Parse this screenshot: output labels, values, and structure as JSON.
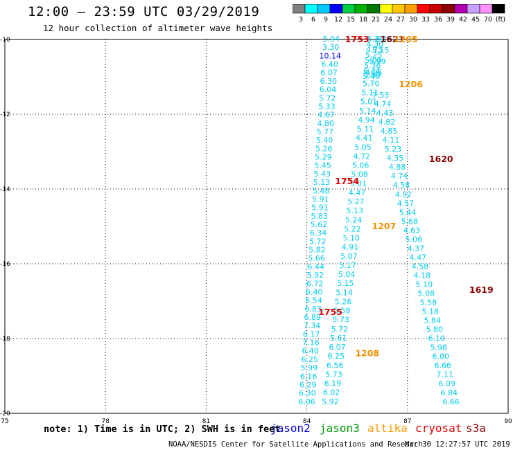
{
  "header": {
    "title": "12:00  – 23:59 UTC 03/29/2019",
    "subtitle": "12 hour collection of altimeter wave heights"
  },
  "colorbar": {
    "labels": [
      "3",
      "6",
      "9",
      "12",
      "15",
      "18",
      "21",
      "24",
      "27",
      "30",
      "33",
      "36",
      "39",
      "42",
      "45",
      "70",
      "(ft)"
    ],
    "colors": [
      "#808080",
      "#00ffff",
      "#00c8ff",
      "#0000ff",
      "#00d040",
      "#00b000",
      "#007800",
      "#ffff00",
      "#ffc800",
      "#ffa000",
      "#ff0000",
      "#c80000",
      "#8b0000",
      "#b000b0",
      "#c8a0ff",
      "#ff90ff",
      "#000000"
    ]
  },
  "chart_data": {
    "type": "scatter",
    "xlim": [
      75,
      90
    ],
    "ylim": [
      -20,
      -10
    ],
    "xticks": [
      75,
      78,
      81,
      84,
      87,
      90
    ],
    "yticks": [
      -10,
      -12,
      -14,
      -16,
      -18,
      -20
    ],
    "grid": true,
    "point_color": "#00ccee",
    "tracks": [
      {
        "lon_start": 84.73,
        "lat_start": -10.0,
        "lon_end": 84.0,
        "lat_end": -19.7,
        "values": [
          "5.94",
          "3.30",
          "10.14",
          "6.40",
          "6.07",
          "6.30",
          "6.04",
          "5.72",
          "5.33",
          "4.67",
          "4.80",
          "5.77",
          "5.40",
          "5.26",
          "5.29",
          "5.45",
          "5.43",
          "5.13",
          "5.48",
          "5.91",
          "5.91",
          "5.83",
          "5.62",
          "6.34",
          "5.72",
          "5.82",
          "5.66",
          "6.44",
          "5.92",
          "6.72",
          "6.40",
          "6.54",
          "6.83",
          "6.89",
          "7.34",
          "6.17",
          "7.16",
          "6.40",
          "6.25",
          "5.99",
          "6.16",
          "6.29",
          "6.30",
          "6.06"
        ],
        "colors": {
          "2": "#0000dd"
        }
      },
      {
        "lon_start": 85.95,
        "lat_start": -10.95,
        "lon_end": 84.7,
        "lat_end": -19.7,
        "values": [
          "5.50",
          "5.70",
          "5.11",
          "5.01",
          "5.14",
          "4.94",
          "5.11",
          "4.41",
          "5.05",
          "4.72",
          "5.06",
          "5.08",
          "5.01",
          "4.47",
          "5.27",
          "5.13",
          "5.24",
          "5.22",
          "5.10",
          "4.91",
          "5.07",
          "5.17",
          "5.04",
          "5.15",
          "5.14",
          "5.26",
          "5.58",
          "5.73",
          "5.72",
          "5.61",
          "6.07",
          "6.25",
          "6.56",
          "5.73",
          "6.19",
          "6.02",
          "5.92"
        ]
      },
      {
        "lon_start": 86.05,
        "lat_start": -10.0,
        "lon_end": 85.92,
        "lat_end": -11.0,
        "values": [
          "5.29",
          "4.30",
          "4.75",
          "5.25",
          "5.00",
          "5.36",
          "6.44",
          "5.40"
        ]
      },
      {
        "lon_start": 86.3,
        "lat_start": -10.0,
        "lon_end": 86.0,
        "lat_end": -10.9,
        "values": [
          "6.15",
          "5.15",
          "5.99",
          "4.25"
        ]
      },
      {
        "lon_start": 86.2,
        "lat_start": -11.5,
        "lon_end": 88.3,
        "lat_end": -19.7,
        "values": [
          "7.53",
          "4.74",
          "4.43",
          "4.82",
          "4.85",
          "4.11",
          "5.23",
          "4.35",
          "4.88",
          "4.74",
          "4.58",
          "4.92",
          "4.57",
          "5.44",
          "5.68",
          "4.63",
          "5.06",
          "4.37",
          "4.47",
          "4.58",
          "4.18",
          "5.10",
          "5.08",
          "5.58",
          "5.18",
          "5.84",
          "5.80",
          "6.10",
          "5.98",
          "6.00",
          "6.66",
          "7.11",
          "6.09",
          "6.84",
          "6.66"
        ]
      }
    ],
    "pass_times": [
      {
        "label": "1753",
        "lon": 85.5,
        "lat": -10.0,
        "color": "#dd0000"
      },
      {
        "label": "1621",
        "lon": 86.55,
        "lat": -10.0,
        "color": "#8b0000"
      },
      {
        "label": "1205",
        "lon": 86.95,
        "lat": -10.0,
        "color": "#f09000"
      },
      {
        "label": "1206",
        "lon": 87.1,
        "lat": -11.2,
        "color": "#f09000"
      },
      {
        "label": "1620",
        "lon": 88.0,
        "lat": -13.2,
        "color": "#8b0000"
      },
      {
        "label": "1754",
        "lon": 85.2,
        "lat": -13.8,
        "color": "#dd0000"
      },
      {
        "label": "1207",
        "lon": 86.3,
        "lat": -15.0,
        "color": "#f09000"
      },
      {
        "label": "1619",
        "lon": 89.2,
        "lat": -16.7,
        "color": "#8b0000"
      },
      {
        "label": "1755",
        "lon": 84.7,
        "lat": -17.3,
        "color": "#dd0000"
      },
      {
        "label": "1208",
        "lon": 85.8,
        "lat": -18.4,
        "color": "#f09000"
      }
    ]
  },
  "footer": {
    "note": "note: 1) Time is in UTC; 2) SWH is in feet",
    "legend": [
      {
        "label": "jason2",
        "color": "#0000dd"
      },
      {
        "label": "jason3",
        "color": "#009900"
      },
      {
        "label": "altika",
        "color": "#ff9900"
      },
      {
        "label": "cryosat",
        "color": "#dd0000"
      },
      {
        "label": "s3a",
        "color": "#8b0000"
      }
    ],
    "credit": "NOAA/NESDIS Center for Satellite Applications and Research",
    "timestamp": "Mar 30 12:27:57 UTC 2019"
  }
}
